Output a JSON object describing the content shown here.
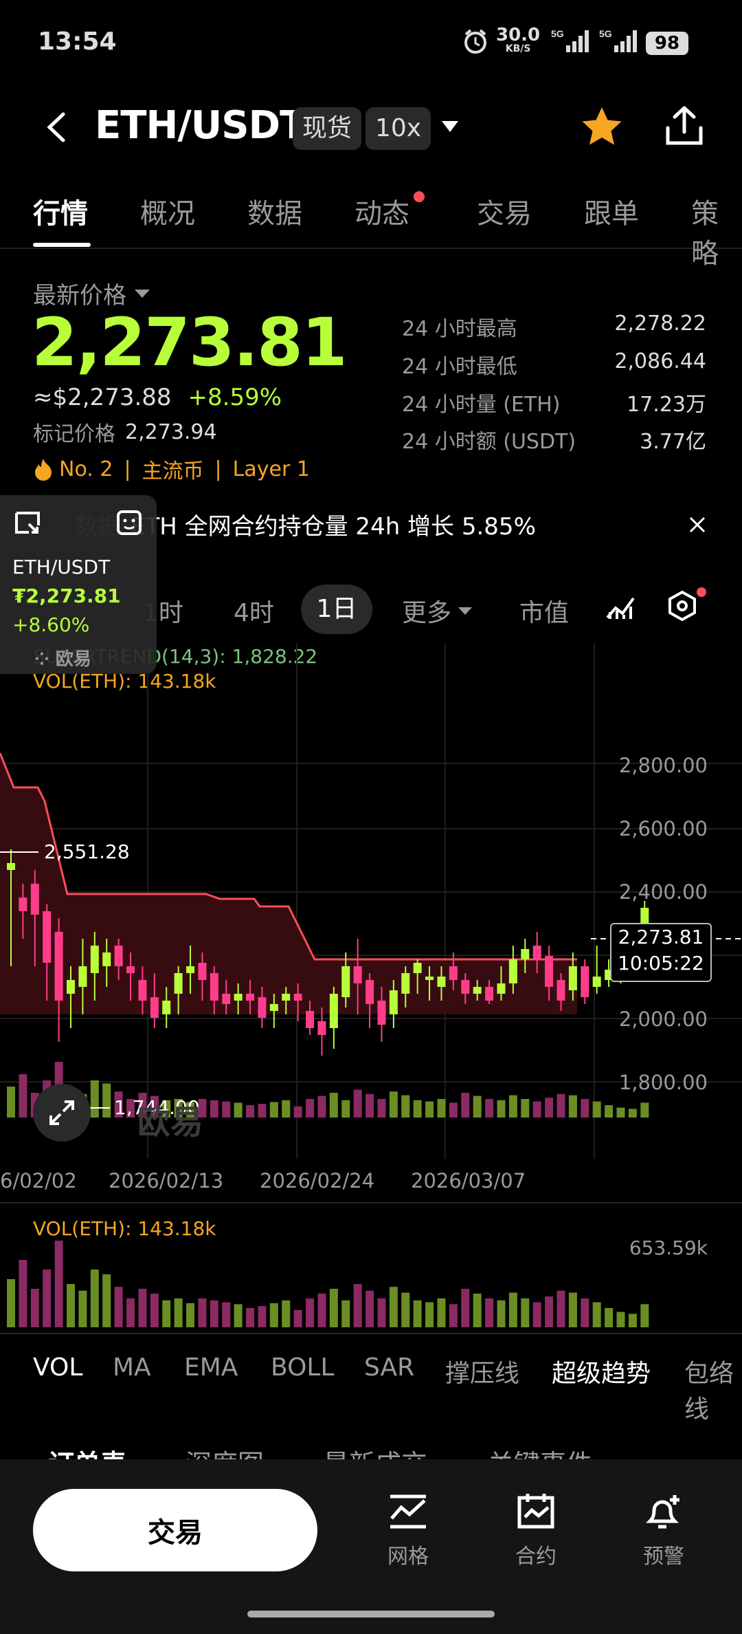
{
  "status_bar": {
    "time": "13:54",
    "net_speed": "30.0",
    "net_unit": "KB/S",
    "signal1": "5G",
    "signal2": "5G",
    "battery": "98"
  },
  "header": {
    "pair": "ETH/USDT",
    "market": "现货",
    "leverage": "10x"
  },
  "tabs": [
    {
      "label": "行情"
    },
    {
      "label": "概况"
    },
    {
      "label": "数据"
    },
    {
      "label": "动态"
    },
    {
      "label": "交易"
    },
    {
      "label": "跟单"
    },
    {
      "label": "策略"
    }
  ],
  "price": {
    "latest_label": "最新价格",
    "last": "2,273.81",
    "usd": "≈$2,273.88",
    "change": "+8.59%",
    "mark_label": "标记价格",
    "mark": "2,273.94",
    "rank": "No. 2",
    "tag1": "主流币",
    "tag2": "Layer 1"
  },
  "stats": [
    {
      "label": "24 小时最高",
      "value": "2,278.22"
    },
    {
      "label": "24 小时最低",
      "value": "2,086.44"
    },
    {
      "label": "24 小时量 (ETH)",
      "value": "17.23万"
    },
    {
      "label": "24 小时额 (USDT)",
      "value": "3.77亿"
    }
  ],
  "banner": {
    "prefix": "数据",
    "text": "ETH 全网合约持仓量 24h 增长 5.85%"
  },
  "float_card": {
    "pair": "ETH/USDT",
    "price": "₮2,273.81",
    "change": "+8.60%"
  },
  "timeframes": {
    "t1": "1时",
    "t2": "4时",
    "t3": "1日",
    "more": "更多",
    "mcap": "市值"
  },
  "indicator_line": {
    "supertrend": "SUPERTREND(14,3): 1,828.22",
    "vol": "VOL(ETH): 143.18k",
    "watermark": "欧易"
  },
  "axis": {
    "labels": [
      "2,800.00",
      "2,600.00",
      "2,400.00",
      "2,000.00",
      "1,800.00"
    ],
    "high_marker": "2,551.28",
    "low_marker": "1,744.00",
    "current_price": "2,273.81",
    "countdown": "10:05:22",
    "dates": [
      "6/02/02",
      "2026/02/13",
      "2026/02/24",
      "2026/03/07"
    ]
  },
  "volume_panel": {
    "label": "VOL(ETH): 143.18k",
    "max": "653.59k"
  },
  "indicators": [
    "VOL",
    "MA",
    "EMA",
    "BOLL",
    "SAR",
    "撑压线",
    "超级趋势",
    "包络线"
  ],
  "lower_tabs": [
    "订单表",
    "深度图",
    "最新成交",
    "关键事件"
  ],
  "bottom_nav": {
    "trade": "交易",
    "grid": "网格",
    "contract": "合约",
    "alert": "预警"
  },
  "colors": {
    "up": "#b8ff3a",
    "down": "#ff3d8a",
    "accent_orange": "#f5a623",
    "supertrend": "#ff4d57"
  }
}
